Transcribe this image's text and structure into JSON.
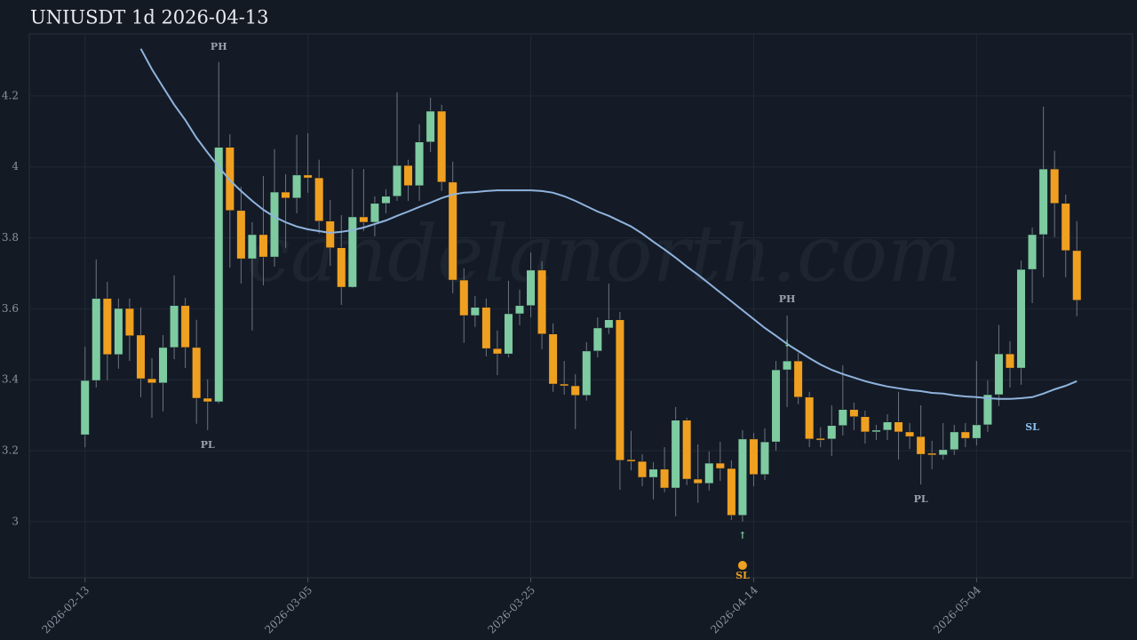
{
  "chart_data": {
    "type": "candlestick",
    "title": "UNIUSDT 1d 2026-04-13",
    "watermark": "candelanorth.com",
    "x": [
      "2026-02-13",
      "2026-02-14",
      "2026-02-15",
      "2026-02-16",
      "2026-02-17",
      "2026-02-18",
      "2026-02-19",
      "2026-02-20",
      "2026-02-21",
      "2026-02-22",
      "2026-02-23",
      "2026-02-24",
      "2026-02-25",
      "2026-02-26",
      "2026-02-27",
      "2026-02-28",
      "2026-03-01",
      "2026-03-02",
      "2026-03-03",
      "2026-03-04",
      "2026-03-05",
      "2026-03-06",
      "2026-03-07",
      "2026-03-08",
      "2026-03-09",
      "2026-03-10",
      "2026-03-11",
      "2026-03-12",
      "2026-03-13",
      "2026-03-14",
      "2026-03-15",
      "2026-03-16",
      "2026-03-17",
      "2026-03-18",
      "2026-03-19",
      "2026-03-20",
      "2026-03-21",
      "2026-03-22",
      "2026-03-23",
      "2026-03-24",
      "2026-03-25",
      "2026-03-26",
      "2026-03-27",
      "2026-03-28",
      "2026-03-29",
      "2026-03-30",
      "2026-03-31",
      "2026-04-01",
      "2026-04-02",
      "2026-04-03",
      "2026-04-04",
      "2026-04-05",
      "2026-04-06",
      "2026-04-07",
      "2026-04-08",
      "2026-04-09",
      "2026-04-10",
      "2026-04-11",
      "2026-04-12",
      "2026-04-13",
      "2026-04-14",
      "2026-04-15",
      "2026-04-16",
      "2026-04-17",
      "2026-04-18",
      "2026-04-19",
      "2026-04-20",
      "2026-04-21",
      "2026-04-22",
      "2026-04-23",
      "2026-04-24",
      "2026-04-25",
      "2026-04-26",
      "2026-04-27",
      "2026-04-28",
      "2026-04-29",
      "2026-04-30",
      "2026-05-01",
      "2026-05-02",
      "2026-05-03",
      "2026-05-04",
      "2026-05-05",
      "2026-05-06",
      "2026-05-07",
      "2026-05-08",
      "2026-05-09",
      "2026-05-10",
      "2026-05-11",
      "2026-05-12",
      "2026-05-13"
    ],
    "open": [
      3.245,
      3.398,
      3.629,
      3.471,
      3.601,
      3.526,
      3.403,
      3.391,
      3.491,
      3.609,
      3.491,
      3.348,
      3.338,
      4.055,
      3.877,
      3.741,
      3.809,
      3.746,
      3.929,
      3.912,
      3.977,
      3.969,
      3.847,
      3.772,
      3.661,
      3.859,
      3.844,
      3.897,
      3.917,
      4.004,
      3.947,
      4.07,
      4.157,
      3.957,
      3.681,
      3.581,
      3.604,
      3.488,
      3.473,
      3.586,
      3.609,
      3.709,
      3.529,
      3.388,
      3.383,
      3.356,
      3.481,
      3.546,
      3.569,
      3.175,
      3.17,
      3.125,
      3.148,
      3.095,
      3.286,
      3.12,
      3.108,
      3.165,
      3.15,
      3.018,
      3.233,
      3.133,
      3.225,
      3.428,
      3.453,
      3.351,
      3.235,
      3.233,
      3.271,
      3.316,
      3.296,
      3.253,
      3.258,
      3.281,
      3.253,
      3.24,
      3.193,
      3.188,
      3.203,
      3.253,
      3.235,
      3.273,
      3.358,
      3.473,
      3.433,
      3.711,
      3.809,
      3.994,
      3.897,
      3.764
    ],
    "high": [
      3.493,
      3.739,
      3.676,
      3.629,
      3.629,
      3.604,
      3.461,
      3.526,
      3.694,
      3.631,
      3.569,
      3.401,
      4.295,
      4.092,
      3.944,
      3.844,
      3.974,
      4.05,
      3.979,
      4.09,
      4.095,
      4.02,
      3.907,
      3.864,
      3.994,
      3.994,
      3.917,
      3.937,
      4.21,
      4.02,
      4.12,
      4.195,
      4.175,
      4.015,
      3.714,
      3.636,
      3.629,
      3.539,
      3.679,
      3.654,
      3.759,
      3.734,
      3.559,
      3.453,
      3.416,
      3.506,
      3.576,
      3.671,
      3.591,
      3.256,
      3.19,
      3.168,
      3.21,
      3.323,
      3.293,
      3.218,
      3.198,
      3.225,
      3.173,
      3.258,
      3.25,
      3.263,
      3.453,
      3.581,
      3.476,
      3.366,
      3.266,
      3.328,
      3.441,
      3.336,
      3.313,
      3.273,
      3.303,
      3.366,
      3.278,
      3.328,
      3.228,
      3.278,
      3.273,
      3.278,
      3.453,
      3.398,
      3.554,
      3.509,
      3.736,
      3.829,
      4.17,
      4.045,
      3.922,
      3.847
    ],
    "low": [
      3.21,
      3.378,
      3.398,
      3.431,
      3.453,
      3.351,
      3.293,
      3.311,
      3.458,
      3.433,
      3.276,
      3.258,
      3.333,
      3.716,
      3.671,
      3.539,
      3.666,
      3.719,
      3.772,
      3.869,
      3.927,
      3.812,
      3.721,
      3.611,
      3.659,
      3.819,
      3.804,
      3.869,
      3.904,
      3.904,
      3.904,
      4.042,
      3.932,
      3.644,
      3.504,
      3.549,
      3.466,
      3.413,
      3.463,
      3.554,
      3.576,
      3.486,
      3.366,
      3.358,
      3.261,
      3.341,
      3.463,
      3.529,
      3.09,
      3.145,
      3.1,
      3.063,
      3.083,
      3.015,
      3.103,
      3.053,
      3.088,
      3.115,
      3.005,
      3.0,
      3.1,
      3.118,
      3.2,
      3.323,
      3.331,
      3.21,
      3.21,
      3.185,
      3.243,
      3.258,
      3.22,
      3.23,
      3.23,
      3.175,
      3.205,
      3.105,
      3.148,
      3.175,
      3.188,
      3.21,
      3.215,
      3.253,
      3.326,
      3.378,
      3.386,
      3.616,
      3.689,
      3.802,
      3.689,
      3.579
    ],
    "close": [
      3.398,
      3.629,
      3.471,
      3.601,
      3.524,
      3.403,
      3.391,
      3.491,
      3.609,
      3.491,
      3.348,
      3.338,
      4.055,
      3.877,
      3.741,
      3.809,
      3.746,
      3.929,
      3.912,
      3.977,
      3.969,
      3.847,
      3.772,
      3.661,
      3.859,
      3.844,
      3.897,
      3.917,
      4.004,
      3.947,
      4.07,
      4.157,
      3.957,
      3.681,
      3.581,
      3.604,
      3.488,
      3.473,
      3.586,
      3.609,
      3.709,
      3.529,
      3.388,
      3.383,
      3.356,
      3.481,
      3.546,
      3.569,
      3.173,
      3.17,
      3.125,
      3.148,
      3.095,
      3.286,
      3.12,
      3.108,
      3.165,
      3.15,
      3.018,
      3.233,
      3.133,
      3.225,
      3.428,
      3.453,
      3.351,
      3.233,
      3.233,
      3.271,
      3.316,
      3.296,
      3.253,
      3.258,
      3.281,
      3.253,
      3.24,
      3.19,
      3.188,
      3.203,
      3.253,
      3.235,
      3.273,
      3.358,
      3.473,
      3.433,
      3.711,
      3.809,
      3.994,
      3.897,
      3.764,
      3.624
    ],
    "up_color": "#7ecba1",
    "down_color": "#f0a020",
    "ma": {
      "color": "#8fb3dd",
      "values": [
        null,
        null,
        null,
        null,
        null,
        4.333,
        4.275,
        4.225,
        4.175,
        4.132,
        4.082,
        4.04,
        4.0,
        3.962,
        3.932,
        3.904,
        3.879,
        3.859,
        3.844,
        3.832,
        3.824,
        3.819,
        3.814,
        3.817,
        3.822,
        3.829,
        3.839,
        3.849,
        3.862,
        3.874,
        3.887,
        3.899,
        3.912,
        3.922,
        3.927,
        3.929,
        3.932,
        3.934,
        3.934,
        3.934,
        3.934,
        3.932,
        3.927,
        3.917,
        3.904,
        3.889,
        3.874,
        3.862,
        3.847,
        3.832,
        3.812,
        3.789,
        3.767,
        3.744,
        3.719,
        3.696,
        3.671,
        3.646,
        3.621,
        3.596,
        3.571,
        3.546,
        3.524,
        3.501,
        3.481,
        3.461,
        3.443,
        3.428,
        3.416,
        3.406,
        3.396,
        3.388,
        3.381,
        3.376,
        3.371,
        3.368,
        3.363,
        3.361,
        3.356,
        3.353,
        3.351,
        3.348,
        3.346,
        3.346,
        3.348,
        3.351,
        3.361,
        3.373,
        3.383,
        3.396
      ]
    },
    "annotations": [
      {
        "label": "PH",
        "x": "2026-02-25",
        "y": 4.338,
        "color": "#9aa3ad"
      },
      {
        "label": "PL",
        "x": "2026-02-24",
        "y": 3.215,
        "color": "#9aa3ad"
      },
      {
        "label": "PH",
        "x": "2026-04-17",
        "y": 3.626,
        "color": "#9aa3ad"
      },
      {
        "label": "↓",
        "x": "2026-04-17",
        "y": 3.501,
        "color": "#7ecba1"
      },
      {
        "label": "↑",
        "x": "2026-04-13",
        "y": 2.96,
        "color": "#7ecba1"
      },
      {
        "label": "PL",
        "x": "2026-04-29",
        "y": 3.063,
        "color": "#9aa3ad"
      },
      {
        "label": "SL",
        "x": "2026-04-13",
        "y": 2.847,
        "color": "#f0a020"
      },
      {
        "label": "SL",
        "x": "2026-05-09",
        "y": 3.265,
        "color": "#8fc0f0"
      }
    ],
    "markers": [
      {
        "x": "2026-04-13",
        "y": 2.877,
        "color": "#f0a020"
      }
    ],
    "xlim": [
      "2026-02-08",
      "2026-05-18"
    ],
    "xticks": [
      "2026-02-13",
      "2026-03-05",
      "2026-03-25",
      "2026-04-14",
      "2026-05-04"
    ],
    "ylim": [
      2.842,
      4.375
    ],
    "yticks": [
      3,
      3.2,
      3.4,
      3.6,
      3.8,
      4,
      4.2
    ],
    "grid": true
  }
}
